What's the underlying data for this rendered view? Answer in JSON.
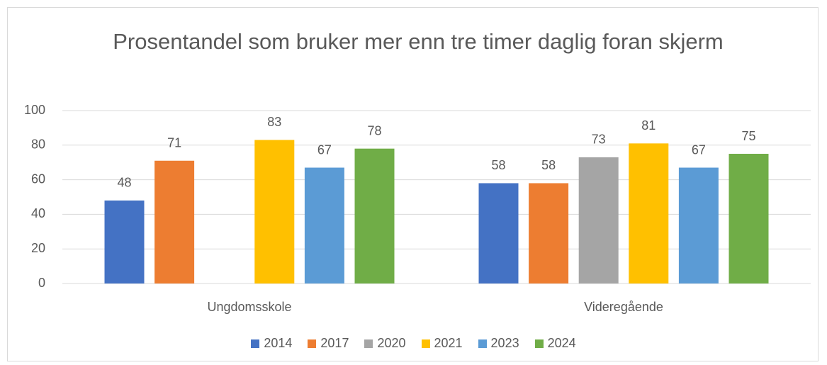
{
  "chart_data": {
    "type": "bar",
    "title": "Prosentandel som bruker mer enn tre timer daglig foran skjerm",
    "categories": [
      "Ungdomsskole",
      "Videregående"
    ],
    "series": [
      {
        "name": "2014",
        "color": "#4472c4",
        "values": [
          48,
          58
        ]
      },
      {
        "name": "2017",
        "color": "#ed7d31",
        "values": [
          71,
          58
        ]
      },
      {
        "name": "2020",
        "color": "#a5a5a5",
        "values": [
          null,
          73
        ]
      },
      {
        "name": "2021",
        "color": "#ffc000",
        "values": [
          83,
          81
        ]
      },
      {
        "name": "2023",
        "color": "#5b9bd5",
        "values": [
          67,
          67
        ]
      },
      {
        "name": "2024",
        "color": "#70ad47",
        "values": [
          78,
          75
        ]
      }
    ],
    "ylim": [
      0,
      100
    ],
    "yticks": [
      0,
      20,
      40,
      60,
      80,
      100
    ],
    "grid": true,
    "legend": "bottom"
  }
}
